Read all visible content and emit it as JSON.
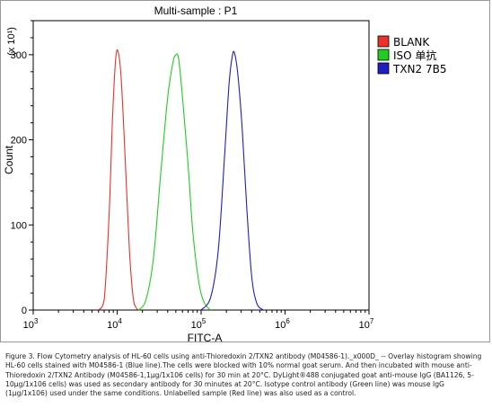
{
  "figure": {
    "caption": "Figure 3. Flow Cytometry analysis of HL-60 cells using anti-Thioredoxin 2/TXN2 antibody (M04586-1)._x000D_ -- Overlay histogram showing HL-60 cells stained with M04586-1 (Blue line).The cells were blocked with 10% normal goat serum. And then incubated with mouse anti-Thioredoxin 2/TXN2 Antibody (M04586-1,1μg/1x106 cells) for 30 min at 20°C. DyLight®488 conjugated goat anti-mouse IgG (BA1126, 5-10μg/1x106 cells) was used as secondary antibody for 30 minutes at 20°C. Isotype control antibody (Green line) was mouse IgG (1μg/1x106) used under the same conditions. Unlabelled sample (Red line) was also used as a control."
  },
  "chart_data": {
    "type": "line",
    "title": "Multi-sample : P1",
    "xlabel": "FITC-A",
    "ylabel": "Count",
    "y_multiplier_label": "(x 10¹)",
    "x_scale": "log",
    "xlim": [
      1000,
      10000000
    ],
    "ylim": [
      0,
      340
    ],
    "x_ticks": [
      {
        "value": 1000,
        "base": "10",
        "exp": "3"
      },
      {
        "value": 10000,
        "base": "10",
        "exp": "4"
      },
      {
        "value": 100000,
        "base": "10",
        "exp": "5"
      },
      {
        "value": 1000000,
        "base": "10",
        "exp": "6"
      },
      {
        "value": 10000000,
        "base": "10",
        "exp": "7"
      }
    ],
    "y_ticks": [
      0,
      100,
      200,
      300
    ],
    "grid": false,
    "legend_position": "top-right",
    "series": [
      {
        "name": "BLANK",
        "color": "#e8322b",
        "x": [
          6000,
          7000,
          8000,
          8800,
          9600,
          10300,
          11200,
          12500,
          14000,
          15500,
          17000,
          18500
        ],
        "y": [
          0,
          12,
          110,
          225,
          295,
          303,
          270,
          175,
          70,
          15,
          2,
          0
        ]
      },
      {
        "name": "ISO 单抗",
        "color": "#22cc22",
        "x": [
          18000,
          22000,
          27000,
          33000,
          40000,
          46000,
          50000,
          54000,
          60000,
          70000,
          80000,
          95000,
          110000,
          130000
        ],
        "y": [
          0,
          12,
          60,
          160,
          250,
          290,
          300,
          295,
          250,
          170,
          90,
          30,
          8,
          0
        ]
      },
      {
        "name": "TXN2 7B5",
        "color": "#1f1fbf",
        "x": [
          100000,
          130000,
          160000,
          190000,
          215000,
          235000,
          250000,
          275000,
          310000,
          350000,
          400000,
          460000,
          550000
        ],
        "y": [
          0,
          15,
          70,
          180,
          265,
          298,
          302,
          275,
          210,
          120,
          40,
          8,
          0
        ]
      }
    ]
  }
}
